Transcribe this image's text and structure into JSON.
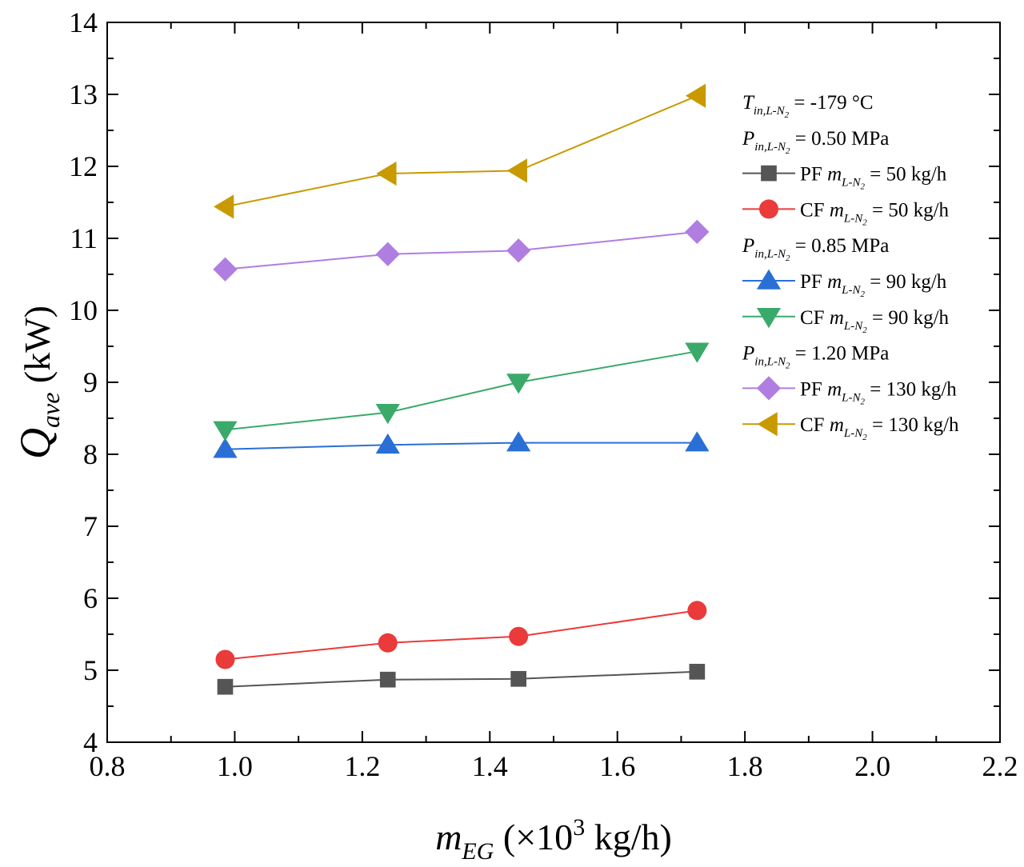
{
  "chart_data": {
    "type": "line",
    "xlabel": {
      "main": "m",
      "sub": "EG",
      "rest": " (×10",
      "sup": "3",
      "unit": " kg/h)"
    },
    "ylabel": {
      "main": "Q",
      "sub": "ave",
      "unit": " (kW)"
    },
    "xlim": [
      0.8,
      2.2
    ],
    "ylim": [
      4,
      14
    ],
    "xticks": [
      0.8,
      1.0,
      1.2,
      1.4,
      1.6,
      1.8,
      2.0,
      2.2
    ],
    "xtick_labels": [
      "0.8",
      "1.0",
      "1.2",
      "1.4",
      "1.6",
      "1.8",
      "2.0",
      "2.2"
    ],
    "yticks": [
      4,
      5,
      6,
      7,
      8,
      9,
      10,
      11,
      12,
      13,
      14
    ],
    "ytick_labels": [
      "4",
      "5",
      "6",
      "7",
      "8",
      "9",
      "10",
      "11",
      "12",
      "13",
      "14"
    ],
    "grid": false,
    "legend_placement": "top-right",
    "conditions": [
      {
        "id": "temp",
        "var": "T",
        "sub": "in,L-N",
        "subsub": "2",
        "text": " = -179 °C"
      },
      {
        "id": "p050",
        "var": "P",
        "sub": "in,L-N",
        "subsub": "2",
        "text": " = 0.50 MPa"
      },
      {
        "id": "p085",
        "var": "P",
        "sub": "in,L-N",
        "subsub": "2",
        "text": " = 0.85 MPa"
      },
      {
        "id": "p120",
        "var": "P",
        "sub": "in,L-N",
        "subsub": "2",
        "text": " = 1.20 MPa"
      }
    ],
    "series": [
      {
        "id": "pf50",
        "prefix": "PF ",
        "var": "m",
        "sub": "L-N",
        "subsub": "2",
        "text": " = 50 kg/h",
        "color": "#555555",
        "marker": "square",
        "x": [
          0.985,
          1.24,
          1.445,
          1.725
        ],
        "values": [
          4.77,
          4.87,
          4.88,
          4.98
        ]
      },
      {
        "id": "cf50",
        "prefix": "CF ",
        "var": "m",
        "sub": "L-N",
        "subsub": "2",
        "text": " = 50 kg/h",
        "color": "#ea3a3a",
        "marker": "circle",
        "x": [
          0.985,
          1.24,
          1.445,
          1.725
        ],
        "values": [
          5.15,
          5.38,
          5.47,
          5.83
        ]
      },
      {
        "id": "pf90",
        "prefix": "PF ",
        "var": "m",
        "sub": "L-N",
        "subsub": "2",
        "text": " = 90 kg/h",
        "color": "#2a6fd6",
        "marker": "triangle-up",
        "x": [
          0.985,
          1.24,
          1.445,
          1.725
        ],
        "values": [
          8.07,
          8.13,
          8.16,
          8.16
        ]
      },
      {
        "id": "cf90",
        "prefix": "CF ",
        "var": "m",
        "sub": "L-N",
        "subsub": "2",
        "text": " = 90 kg/h",
        "color": "#3aaa6a",
        "marker": "triangle-down",
        "x": [
          0.985,
          1.24,
          1.445,
          1.725
        ],
        "values": [
          8.34,
          8.58,
          9.0,
          9.43
        ]
      },
      {
        "id": "pf130",
        "prefix": "PF ",
        "var": "m",
        "sub": "L-N",
        "subsub": "2",
        "text": " = 130 kg/h",
        "color": "#b07ee0",
        "marker": "diamond",
        "x": [
          0.985,
          1.24,
          1.445,
          1.725
        ],
        "values": [
          10.57,
          10.78,
          10.83,
          11.09
        ]
      },
      {
        "id": "cf130",
        "prefix": "CF ",
        "var": "m",
        "sub": "L-N",
        "subsub": "2",
        "text": " = 130 kg/h",
        "color": "#c89a00",
        "marker": "triangle-left",
        "x": [
          0.985,
          1.24,
          1.445,
          1.725
        ],
        "values": [
          11.44,
          11.9,
          11.94,
          12.98
        ]
      }
    ],
    "legend_order": [
      "temp",
      "p050",
      "pf50",
      "cf50",
      "p085",
      "pf90",
      "cf90",
      "p120",
      "pf130",
      "cf130"
    ]
  }
}
